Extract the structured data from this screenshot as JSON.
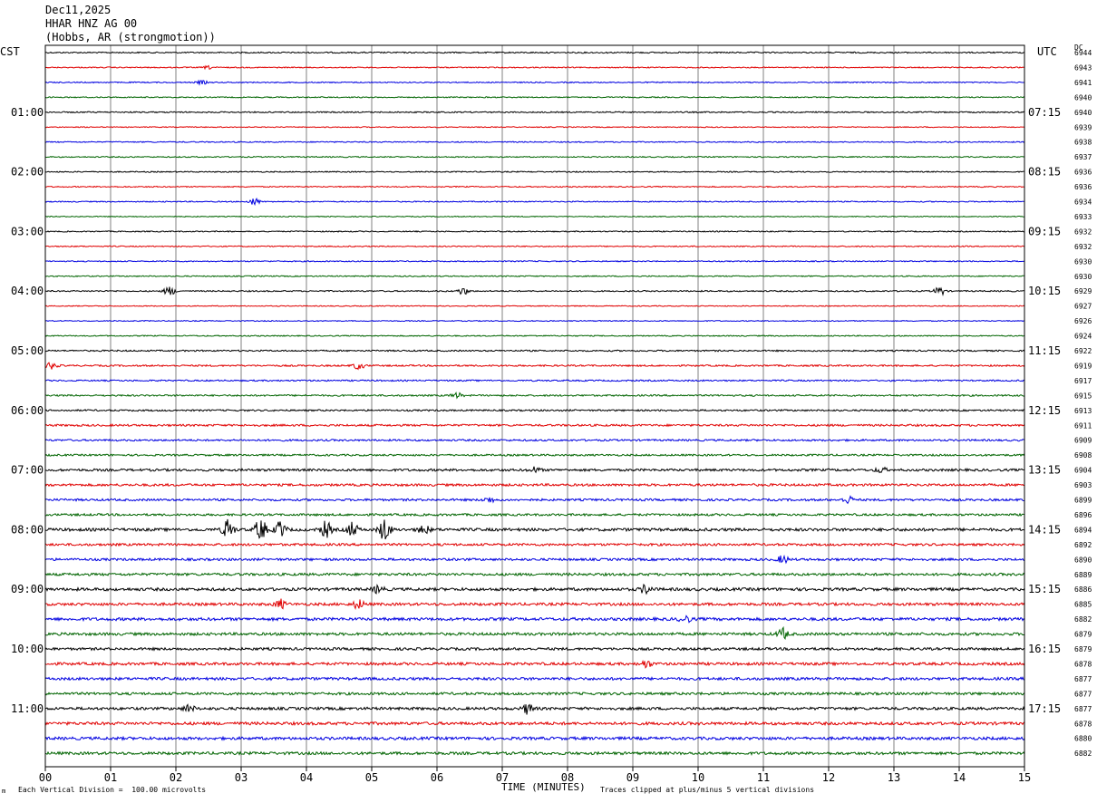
{
  "header": {
    "date": "Dec11,2025",
    "station": "HHAR HNZ AG 00",
    "location": "(Hobbs, AR (strongmotion))"
  },
  "left_tz": "CST",
  "right_tz": "UTC",
  "dc_label": "DC",
  "footer": {
    "vertical_division": "Each Vertical Division =  100.00 microvolts",
    "clip_note": "Traces clipped at plus/minus 5 vertical divisions",
    "corner_mark": "m"
  },
  "chart_data": {
    "type": "line",
    "xlabel": "TIME (MINUTES)",
    "xlim": [
      0,
      15
    ],
    "x_ticks": [
      "00",
      "01",
      "02",
      "03",
      "04",
      "05",
      "06",
      "07",
      "08",
      "09",
      "10",
      "11",
      "12",
      "13",
      "14",
      "15"
    ],
    "trace_colors": [
      "#000000",
      "#e00000",
      "#0000e0",
      "#006400"
    ],
    "left_hour_labels": [
      "01:00",
      "02:00",
      "03:00",
      "04:00",
      "05:00",
      "06:00",
      "07:00",
      "08:00",
      "09:00",
      "10:00",
      "11:00"
    ],
    "right_hour_labels": [
      "07:15",
      "08:15",
      "09:15",
      "10:15",
      "11:15",
      "12:15",
      "13:15",
      "14:15",
      "15:15",
      "16:15",
      "17:15"
    ],
    "dc_offsets": [
      "6944",
      "6943",
      "6941",
      "6940",
      "6940",
      "6939",
      "6938",
      "6937",
      "6936",
      "6936",
      "6934",
      "6933",
      "6932",
      "6932",
      "6930",
      "6930",
      "6929",
      "6927",
      "6926",
      "6924",
      "6922",
      "6919",
      "6917",
      "6915",
      "6913",
      "6911",
      "6909",
      "6908",
      "6904",
      "6903",
      "6899",
      "6896",
      "6894",
      "6892",
      "6890",
      "6889",
      "6886",
      "6885",
      "6882",
      "6879",
      "6879",
      "6878",
      "6877",
      "6877",
      "6877",
      "6878",
      "6880",
      "6882"
    ],
    "noise_level": [
      0.7,
      0.6,
      0.6,
      0.6,
      0.7,
      0.5,
      0.6,
      0.6,
      0.6,
      0.6,
      0.6,
      0.5,
      0.6,
      0.6,
      0.6,
      0.6,
      0.7,
      0.5,
      0.5,
      0.6,
      0.8,
      0.9,
      0.8,
      0.9,
      0.9,
      1.1,
      1.0,
      1.0,
      1.3,
      1.3,
      1.2,
      1.2,
      1.6,
      1.3,
      1.3,
      1.4,
      1.6,
      1.5,
      1.6,
      1.5,
      1.4,
      1.5,
      1.5,
      1.4,
      1.5,
      1.6,
      1.6,
      1.5
    ],
    "events": [
      {
        "trace": 1,
        "minute": 2.5,
        "amplitude": 1.5
      },
      {
        "trace": 2,
        "minute": 2.4,
        "amplitude": 2
      },
      {
        "trace": 10,
        "minute": 3.2,
        "amplitude": 4
      },
      {
        "trace": 16,
        "minute": 1.9,
        "amplitude": 5
      },
      {
        "trace": 16,
        "minute": 6.4,
        "amplitude": 4
      },
      {
        "trace": 16,
        "minute": 13.7,
        "amplitude": 5
      },
      {
        "trace": 21,
        "minute": 0.1,
        "amplitude": 4
      },
      {
        "trace": 21,
        "minute": 4.8,
        "amplitude": 4
      },
      {
        "trace": 23,
        "minute": 6.3,
        "amplitude": 3
      },
      {
        "trace": 28,
        "minute": 7.5,
        "amplitude": 3
      },
      {
        "trace": 28,
        "minute": 12.8,
        "amplitude": 3
      },
      {
        "trace": 30,
        "minute": 6.8,
        "amplitude": 3
      },
      {
        "trace": 30,
        "minute": 12.3,
        "amplitude": 4
      },
      {
        "trace": 32,
        "minute": 2.8,
        "amplitude": 12
      },
      {
        "trace": 32,
        "minute": 3.3,
        "amplitude": 13
      },
      {
        "trace": 32,
        "minute": 3.6,
        "amplitude": 9
      },
      {
        "trace": 32,
        "minute": 4.3,
        "amplitude": 9
      },
      {
        "trace": 32,
        "minute": 4.7,
        "amplitude": 8
      },
      {
        "trace": 32,
        "minute": 5.2,
        "amplitude": 13
      },
      {
        "trace": 32,
        "minute": 5.8,
        "amplitude": 5
      },
      {
        "trace": 34,
        "minute": 11.3,
        "amplitude": 4
      },
      {
        "trace": 36,
        "minute": 9.2,
        "amplitude": 5
      },
      {
        "trace": 36,
        "minute": 5.1,
        "amplitude": 4
      },
      {
        "trace": 37,
        "minute": 3.6,
        "amplitude": 5
      },
      {
        "trace": 37,
        "minute": 4.8,
        "amplitude": 5
      },
      {
        "trace": 38,
        "minute": 9.8,
        "amplitude": 4
      },
      {
        "trace": 39,
        "minute": 11.3,
        "amplitude": 6
      },
      {
        "trace": 41,
        "minute": 9.2,
        "amplitude": 4
      },
      {
        "trace": 44,
        "minute": 7.4,
        "amplitude": 6
      },
      {
        "trace": 44,
        "minute": 2.2,
        "amplitude": 4
      }
    ]
  }
}
